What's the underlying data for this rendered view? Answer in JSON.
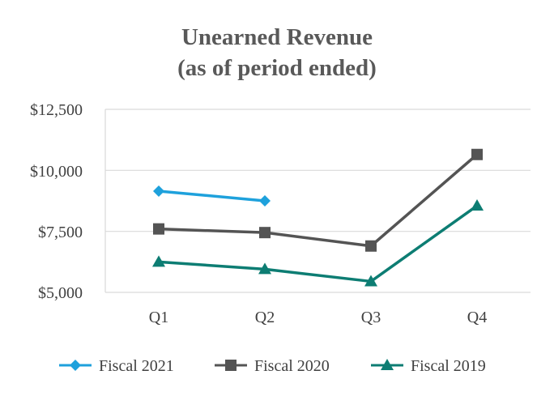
{
  "chart_data": {
    "type": "line",
    "title_line1": "Unearned Revenue",
    "title_line2": "(as of period ended)",
    "categories": [
      "Q1",
      "Q2",
      "Q3",
      "Q4"
    ],
    "y_ticks": [
      "$12,500",
      "$10,000",
      "$7,500",
      "$5,000"
    ],
    "y_tick_values": [
      12500,
      10000,
      7500,
      5000
    ],
    "ylim": [
      5000,
      12500
    ],
    "grid": true,
    "legend_position": "bottom",
    "series": [
      {
        "name": "Fiscal 2021",
        "marker": "diamond",
        "color": "#1ea1dc",
        "values": [
          9150,
          8750,
          null,
          null
        ]
      },
      {
        "name": "Fiscal 2020",
        "marker": "square",
        "color": "#545454",
        "values": [
          7600,
          7450,
          6900,
          10650
        ]
      },
      {
        "name": "Fiscal 2019",
        "marker": "triangle",
        "color": "#0d7d73",
        "values": [
          6250,
          5950,
          5450,
          8550
        ]
      }
    ]
  }
}
